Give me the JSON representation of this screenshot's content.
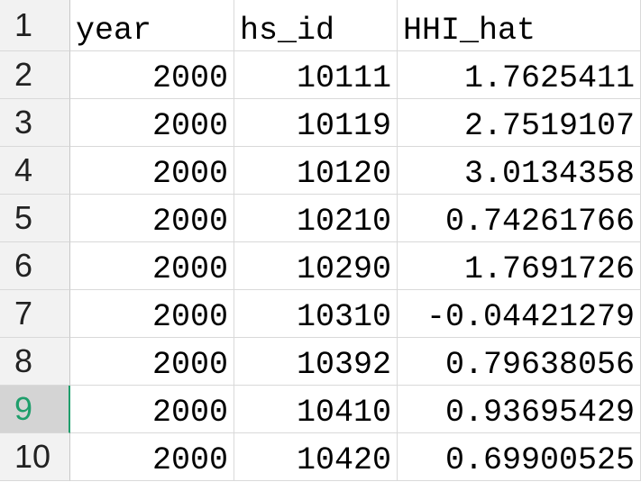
{
  "row_numbers": [
    1,
    2,
    3,
    4,
    5,
    6,
    7,
    8,
    9,
    10
  ],
  "selected_row": 9,
  "table": {
    "header": [
      "year",
      "hs_id",
      "HHI_hat"
    ],
    "rows": [
      [
        2000,
        10111,
        1.7625411
      ],
      [
        2000,
        10119,
        2.7519107
      ],
      [
        2000,
        10120,
        3.0134358
      ],
      [
        2000,
        10210,
        0.74261766
      ],
      [
        2000,
        10290,
        1.7691726
      ],
      [
        2000,
        10310,
        -0.04421279
      ],
      [
        2000,
        10392,
        0.79638056
      ],
      [
        2000,
        10410,
        0.93695429
      ],
      [
        2000,
        10420,
        0.69900525
      ]
    ]
  }
}
